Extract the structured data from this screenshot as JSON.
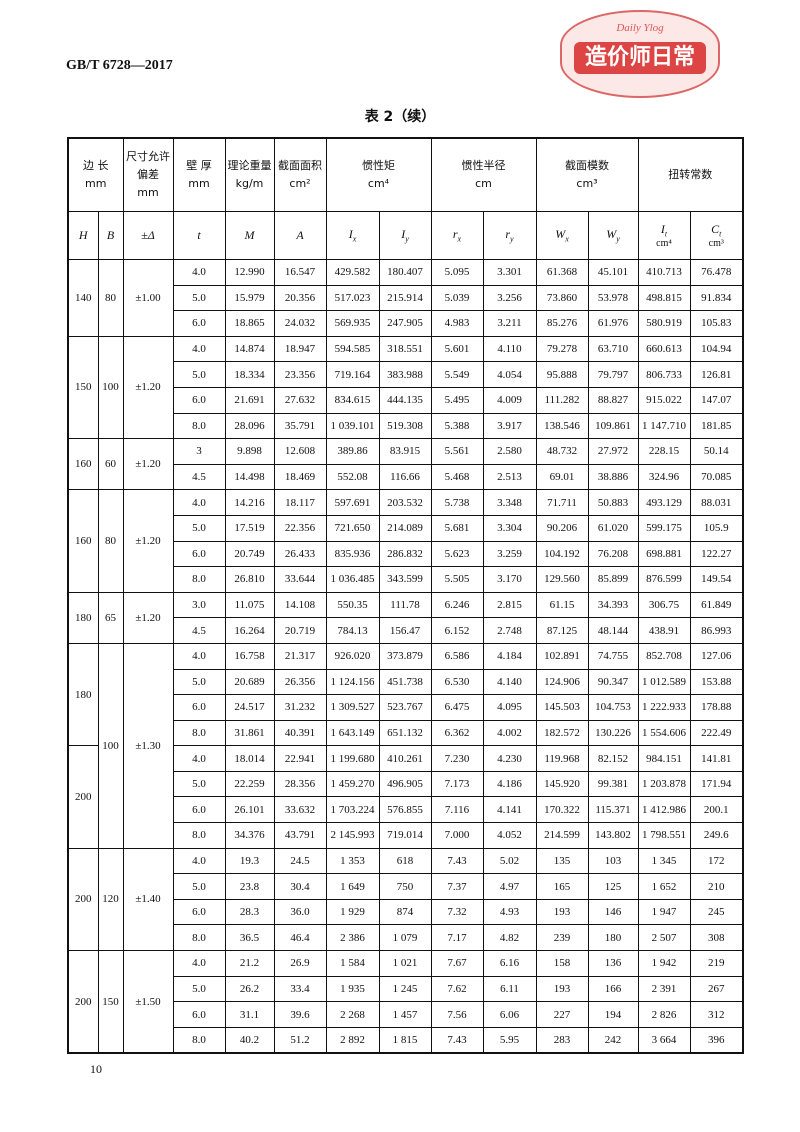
{
  "header": {
    "code": "GB/T 6728—2017",
    "stamp": {
      "small": "Daily Ylog",
      "main": "造价师日常"
    }
  },
  "table": {
    "title": "表 2（续）",
    "head1": [
      {
        "text": "边 长",
        "unit": "mm"
      },
      {
        "text": "尺寸允许偏差",
        "unit": "mm"
      },
      {
        "text": "壁 厚",
        "unit": "mm"
      },
      {
        "text": "理论重量",
        "unit": "kg/m"
      },
      {
        "text": "截面面积",
        "unit": "cm²"
      },
      {
        "text": "惯性矩",
        "unit": "cm⁴"
      },
      {
        "text": "惯性半径",
        "unit": "cm"
      },
      {
        "text": "截面模数",
        "unit": "cm³"
      },
      {
        "text": "扭转常数"
      }
    ],
    "head2": [
      {
        "sym": "H"
      },
      {
        "sym": "B"
      },
      {
        "sym": "±Δ"
      },
      {
        "sym": "t"
      },
      {
        "sym": "M"
      },
      {
        "sym": "A"
      },
      {
        "sym": "I",
        "sub": "x"
      },
      {
        "sym": "I",
        "sub": "y"
      },
      {
        "sym": "r",
        "sub": "x"
      },
      {
        "sym": "r",
        "sub": "y"
      },
      {
        "sym": "W",
        "sub": "x"
      },
      {
        "sym": "W",
        "sub": "y"
      },
      {
        "sym": "I",
        "sub": "t",
        "unit": "cm⁴"
      },
      {
        "sym": "C",
        "sub": "t",
        "unit": "cm³"
      }
    ],
    "groups": [
      {
        "B": "80",
        "tol": "±1.00",
        "sections": [
          {
            "H": "140",
            "rows": [
              [
                "4.0",
                "12.990",
                "16.547",
                "429.582",
                "180.407",
                "5.095",
                "3.301",
                "61.368",
                "45.101",
                "410.713",
                "76.478"
              ],
              [
                "5.0",
                "15.979",
                "20.356",
                "517.023",
                "215.914",
                "5.039",
                "3.256",
                "73.860",
                "53.978",
                "498.815",
                "91.834"
              ],
              [
                "6.0",
                "18.865",
                "24.032",
                "569.935",
                "247.905",
                "4.983",
                "3.211",
                "85.276",
                "61.976",
                "580.919",
                "105.83"
              ]
            ]
          }
        ]
      },
      {
        "B": "100",
        "tol": "±1.20",
        "sections": [
          {
            "H": "150",
            "rows": [
              [
                "4.0",
                "14.874",
                "18.947",
                "594.585",
                "318.551",
                "5.601",
                "4.110",
                "79.278",
                "63.710",
                "660.613",
                "104.94"
              ],
              [
                "5.0",
                "18.334",
                "23.356",
                "719.164",
                "383.988",
                "5.549",
                "4.054",
                "95.888",
                "79.797",
                "806.733",
                "126.81"
              ],
              [
                "6.0",
                "21.691",
                "27.632",
                "834.615",
                "444.135",
                "5.495",
                "4.009",
                "111.282",
                "88.827",
                "915.022",
                "147.07"
              ],
              [
                "8.0",
                "28.096",
                "35.791",
                "1 039.101",
                "519.308",
                "5.388",
                "3.917",
                "138.546",
                "109.861",
                "1 147.710",
                "181.85"
              ]
            ]
          }
        ]
      },
      {
        "B": "60",
        "tol": "±1.20",
        "sections": [
          {
            "H": "160",
            "rows": [
              [
                "3",
                "9.898",
                "12.608",
                "389.86",
                "83.915",
                "5.561",
                "2.580",
                "48.732",
                "27.972",
                "228.15",
                "50.14"
              ],
              [
                "4.5",
                "14.498",
                "18.469",
                "552.08",
                "116.66",
                "5.468",
                "2.513",
                "69.01",
                "38.886",
                "324.96",
                "70.085"
              ]
            ]
          }
        ]
      },
      {
        "B": "80",
        "tol": "±1.20",
        "sections": [
          {
            "H": "160",
            "rows": [
              [
                "4.0",
                "14.216",
                "18.117",
                "597.691",
                "203.532",
                "5.738",
                "3.348",
                "71.711",
                "50.883",
                "493.129",
                "88.031"
              ],
              [
                "5.0",
                "17.519",
                "22.356",
                "721.650",
                "214.089",
                "5.681",
                "3.304",
                "90.206",
                "61.020",
                "599.175",
                "105.9"
              ],
              [
                "6.0",
                "20.749",
                "26.433",
                "835.936",
                "286.832",
                "5.623",
                "3.259",
                "104.192",
                "76.208",
                "698.881",
                "122.27"
              ],
              [
                "8.0",
                "26.810",
                "33.644",
                "1 036.485",
                "343.599",
                "5.505",
                "3.170",
                "129.560",
                "85.899",
                "876.599",
                "149.54"
              ]
            ]
          }
        ]
      },
      {
        "B": "65",
        "tol": "±1.20",
        "sections": [
          {
            "H": "180",
            "rows": [
              [
                "3.0",
                "11.075",
                "14.108",
                "550.35",
                "111.78",
                "6.246",
                "2.815",
                "61.15",
                "34.393",
                "306.75",
                "61.849"
              ],
              [
                "4.5",
                "16.264",
                "20.719",
                "784.13",
                "156.47",
                "6.152",
                "2.748",
                "87.125",
                "48.144",
                "438.91",
                "86.993"
              ]
            ]
          }
        ]
      },
      {
        "B": "100",
        "tol": "±1.30",
        "sections": [
          {
            "H": "180",
            "rows": [
              [
                "4.0",
                "16.758",
                "21.317",
                "926.020",
                "373.879",
                "6.586",
                "4.184",
                "102.891",
                "74.755",
                "852.708",
                "127.06"
              ],
              [
                "5.0",
                "20.689",
                "26.356",
                "1 124.156",
                "451.738",
                "6.530",
                "4.140",
                "124.906",
                "90.347",
                "1 012.589",
                "153.88"
              ],
              [
                "6.0",
                "24.517",
                "31.232",
                "1 309.527",
                "523.767",
                "6.475",
                "4.095",
                "145.503",
                "104.753",
                "1 222.933",
                "178.88"
              ],
              [
                "8.0",
                "31.861",
                "40.391",
                "1 643.149",
                "651.132",
                "6.362",
                "4.002",
                "182.572",
                "130.226",
                "1 554.606",
                "222.49"
              ]
            ]
          },
          {
            "H": "200",
            "rows": [
              [
                "4.0",
                "18.014",
                "22.941",
                "1 199.680",
                "410.261",
                "7.230",
                "4.230",
                "119.968",
                "82.152",
                "984.151",
                "141.81"
              ],
              [
                "5.0",
                "22.259",
                "28.356",
                "1 459.270",
                "496.905",
                "7.173",
                "4.186",
                "145.920",
                "99.381",
                "1 203.878",
                "171.94"
              ],
              [
                "6.0",
                "26.101",
                "33.632",
                "1 703.224",
                "576.855",
                "7.116",
                "4.141",
                "170.322",
                "115.371",
                "1 412.986",
                "200.1"
              ],
              [
                "8.0",
                "34.376",
                "43.791",
                "2 145.993",
                "719.014",
                "7.000",
                "4.052",
                "214.599",
                "143.802",
                "1 798.551",
                "249.6"
              ]
            ]
          }
        ]
      },
      {
        "B": "120",
        "tol": "±1.40",
        "sections": [
          {
            "H": "200",
            "rows": [
              [
                "4.0",
                "19.3",
                "24.5",
                "1 353",
                "618",
                "7.43",
                "5.02",
                "135",
                "103",
                "1 345",
                "172"
              ],
              [
                "5.0",
                "23.8",
                "30.4",
                "1 649",
                "750",
                "7.37",
                "4.97",
                "165",
                "125",
                "1 652",
                "210"
              ],
              [
                "6.0",
                "28.3",
                "36.0",
                "1 929",
                "874",
                "7.32",
                "4.93",
                "193",
                "146",
                "1 947",
                "245"
              ],
              [
                "8.0",
                "36.5",
                "46.4",
                "2 386",
                "1 079",
                "7.17",
                "4.82",
                "239",
                "180",
                "2 507",
                "308"
              ]
            ]
          }
        ]
      },
      {
        "B": "150",
        "tol": "±1.50",
        "sections": [
          {
            "H": "200",
            "rows": [
              [
                "4.0",
                "21.2",
                "26.9",
                "1 584",
                "1 021",
                "7.67",
                "6.16",
                "158",
                "136",
                "1 942",
                "219"
              ],
              [
                "5.0",
                "26.2",
                "33.4",
                "1 935",
                "1 245",
                "7.62",
                "6.11",
                "193",
                "166",
                "2 391",
                "267"
              ],
              [
                "6.0",
                "31.1",
                "39.6",
                "2 268",
                "1 457",
                "7.56",
                "6.06",
                "227",
                "194",
                "2 826",
                "312"
              ],
              [
                "8.0",
                "40.2",
                "51.2",
                "2 892",
                "1 815",
                "7.43",
                "5.95",
                "283",
                "242",
                "3 664",
                "396"
              ]
            ]
          }
        ]
      }
    ]
  },
  "footer": {
    "page": "10"
  }
}
